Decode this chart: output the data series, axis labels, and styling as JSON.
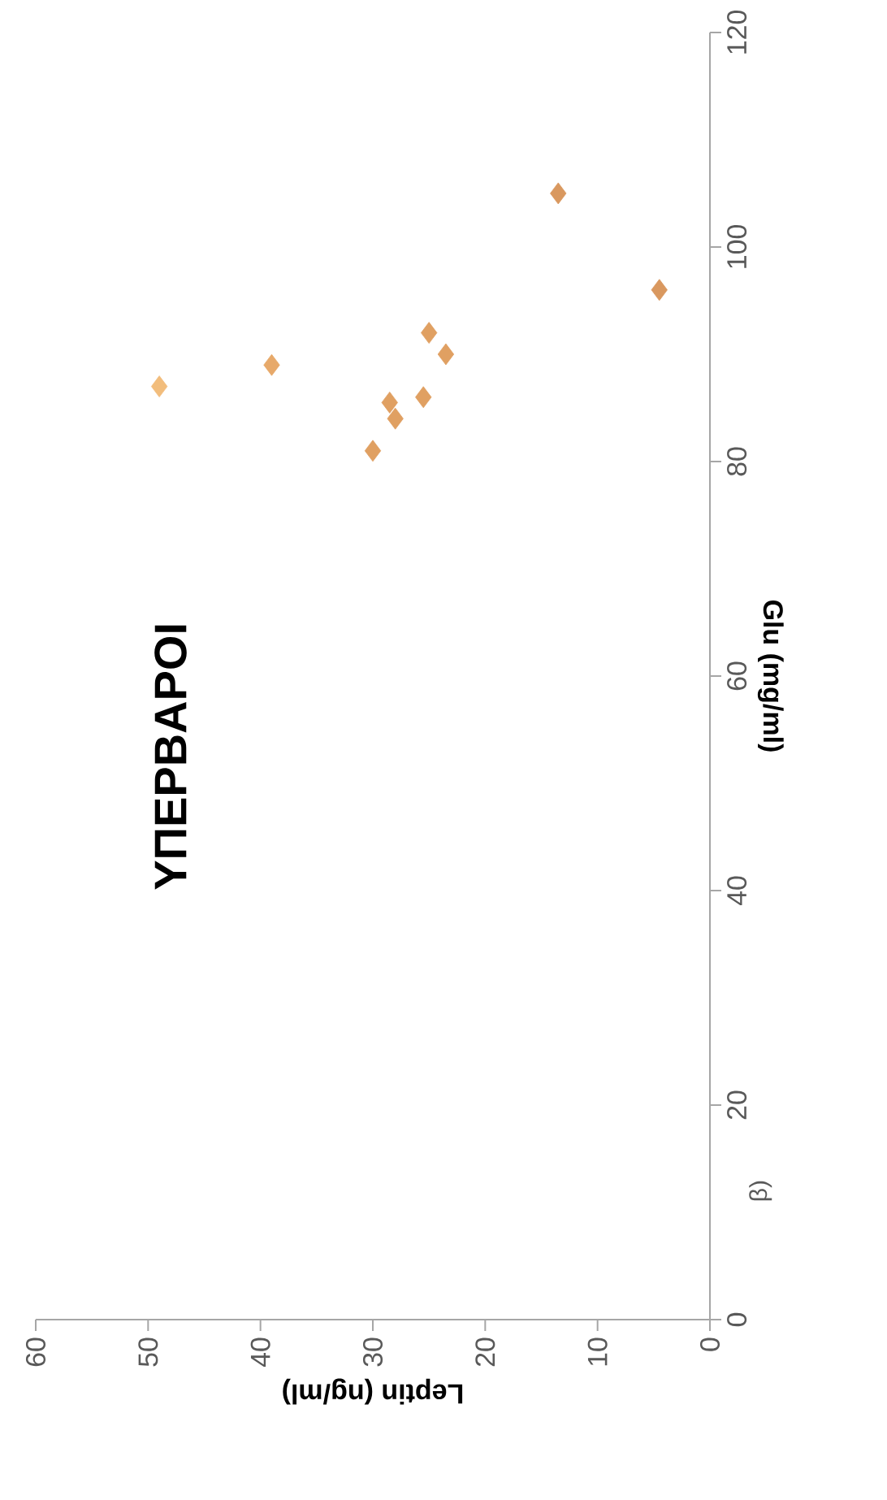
{
  "chart_data": {
    "type": "scatter",
    "title": "ΥΠΕΡΒΑΡΟΙ",
    "xlabel": "Leptin (ng/ml)",
    "ylabel": "Glu (mg/ml)",
    "annotations": [
      "β)"
    ],
    "x": [
      49,
      39,
      30,
      28.5,
      28,
      25.5,
      25,
      23.5,
      13.5,
      4.5
    ],
    "values": [
      87,
      89,
      81,
      85.5,
      84,
      86,
      92,
      90,
      105,
      96
    ],
    "colors": [
      "#f2bd7c",
      "#e7a96a",
      "#e0a062",
      "#e0a062",
      "#e0a062",
      "#e0a062",
      "#e0a062",
      "#e0a062",
      "#d9985f",
      "#d9985f"
    ],
    "xlim": [
      60,
      0
    ],
    "xticks": [
      60,
      50,
      40,
      30,
      20,
      10,
      0
    ],
    "ylim": [
      0,
      120
    ],
    "yticks": [
      0,
      20,
      40,
      60,
      80,
      100,
      120
    ],
    "marker": "diamond"
  }
}
